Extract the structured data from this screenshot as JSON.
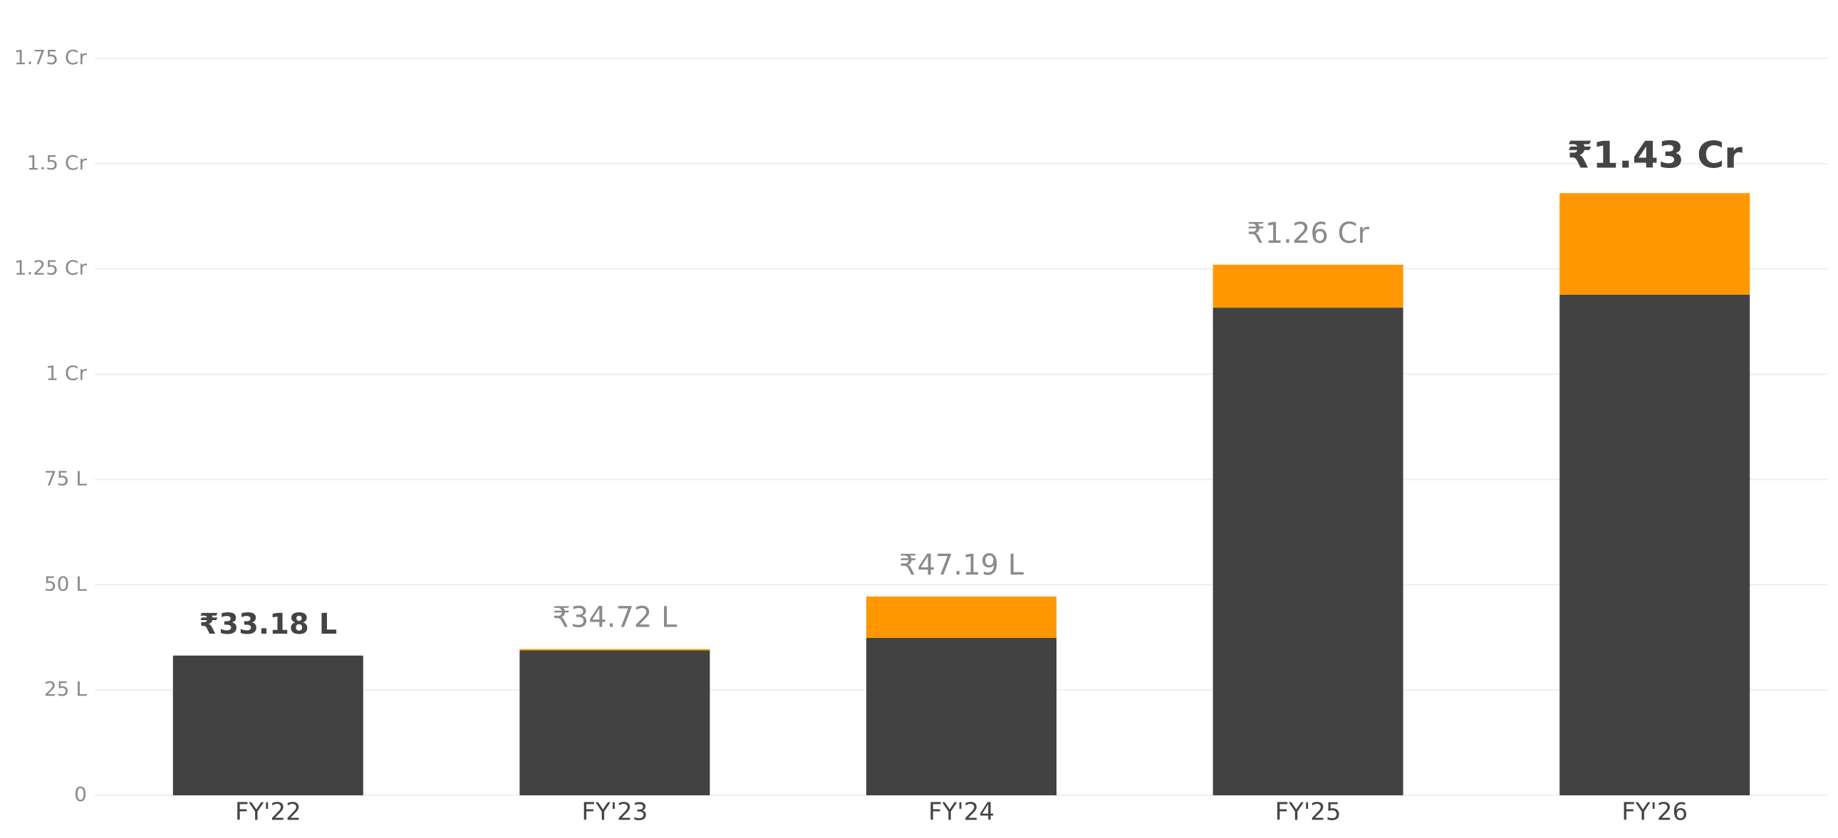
{
  "chart_data": {
    "type": "stacked-bar",
    "categories": [
      "FY'22",
      "FY'23",
      "FY'24",
      "FY'25",
      "FY'26"
    ],
    "series": [
      {
        "color": "#424242",
        "values": [
          33.18,
          34.4,
          37.4,
          115.8,
          118.9
        ]
      },
      {
        "color": "#ff9800",
        "values": [
          0,
          0.32,
          9.79,
          10.2,
          24.1
        ]
      }
    ],
    "totals": [
      33.18,
      34.72,
      47.19,
      126,
      143
    ],
    "value_labels": [
      "₹33.18 L",
      "₹34.72 L",
      "₹47.19 L",
      "₹1.26 Cr",
      "₹1.43 Cr"
    ],
    "highlight": [
      true,
      false,
      false,
      false,
      true
    ],
    "ylim": [
      0,
      175
    ],
    "yticks": [
      0,
      {
        "value": 25,
        "label": "25 L"
      },
      {
        "value": 50,
        "label": "50 L"
      },
      {
        "value": 75,
        "label": "75 L"
      },
      {
        "value": 100,
        "label": "1 Cr"
      },
      {
        "value": 125,
        "label": "1.25 Cr"
      },
      {
        "value": 150,
        "label": "1.5 Cr"
      },
      {
        "value": 175,
        "label": "1.75 Cr"
      }
    ],
    "grid": true
  }
}
